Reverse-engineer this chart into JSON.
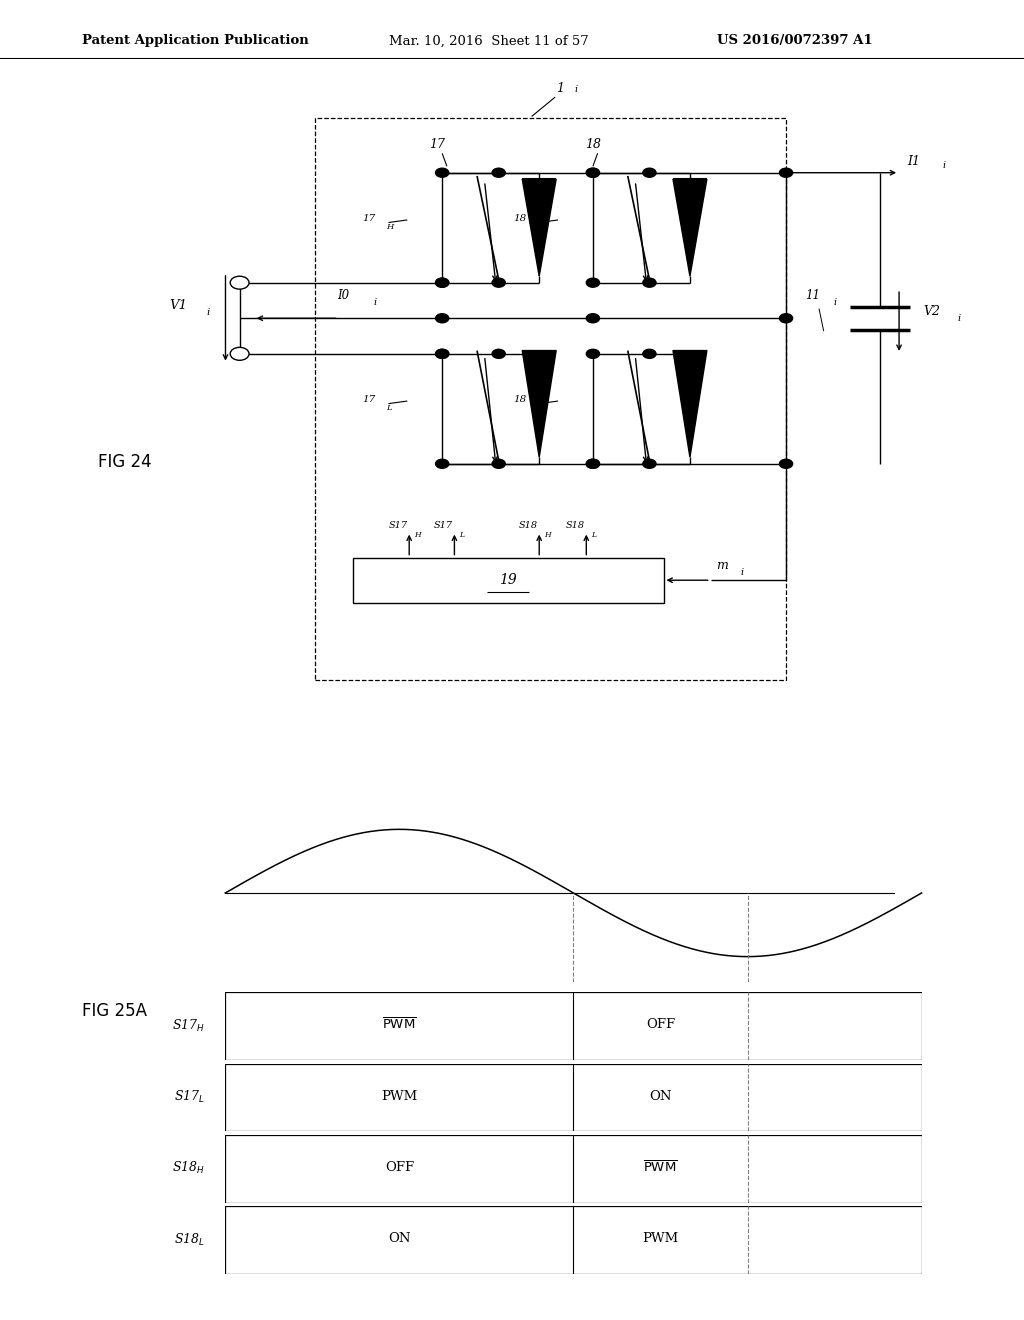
{
  "header_left": "Patent Application Publication",
  "header_mid": "Mar. 10, 2016  Sheet 11 of 57",
  "header_right": "US 2016/0072397 A1",
  "fig24_label": "FIG 24",
  "fig25a_label": "FIG 25A",
  "background_color": "#ffffff",
  "sine_period": 1.0,
  "timing_divider": 0.5,
  "timing_dashed": 0.75,
  "row_labels": [
    "S17H",
    "S17L",
    "S18H",
    "S18L"
  ],
  "row_left_text": [
    "PWM_bar",
    "PWM",
    "OFF",
    "ON"
  ],
  "row_right_text": [
    "OFF",
    "ON",
    "PWM_bar",
    "PWM"
  ]
}
